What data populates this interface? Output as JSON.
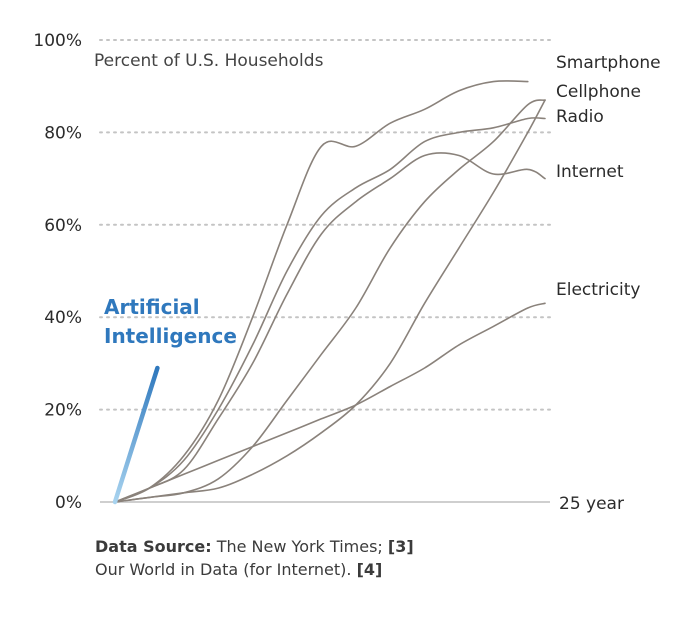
{
  "chart_data": {
    "type": "line",
    "title": "Percent of U.S. Households",
    "x_end_label": "25 year",
    "xlim": [
      0,
      25
    ],
    "ylim": [
      0,
      100
    ],
    "y_ticks": [
      "0%",
      "20%",
      "40%",
      "60%",
      "80%",
      "100%"
    ],
    "y_tick_values": [
      0,
      20,
      40,
      60,
      80,
      100
    ],
    "grid": true,
    "series": [
      {
        "name": "Smartphone",
        "x": [
          0,
          2,
          4,
          6,
          8,
          10,
          12,
          14,
          16,
          18,
          20,
          22,
          24
        ],
        "values": [
          0,
          3,
          10,
          22,
          40,
          60,
          77,
          77,
          82,
          85,
          89,
          91,
          91
        ]
      },
      {
        "name": "Cellphone",
        "x": [
          0,
          2,
          4,
          6,
          8,
          10,
          12,
          14,
          16,
          18,
          20,
          22,
          24,
          25
        ],
        "values": [
          0,
          1,
          2,
          5,
          12,
          22,
          32,
          42,
          55,
          65,
          72,
          78,
          86,
          87
        ]
      },
      {
        "name": "Radio",
        "x": [
          0,
          2,
          4,
          6,
          8,
          10,
          12,
          14,
          16,
          18,
          20,
          22,
          24,
          25
        ],
        "values": [
          0,
          3,
          9,
          20,
          34,
          50,
          62,
          68,
          72,
          78,
          80,
          81,
          83,
          83
        ]
      },
      {
        "name": "Internet",
        "x": [
          0,
          2,
          4,
          6,
          8,
          10,
          12,
          14,
          16,
          18,
          20,
          22,
          24,
          25
        ],
        "values": [
          0,
          3,
          7,
          18,
          30,
          45,
          58,
          65,
          70,
          75,
          75,
          71,
          72,
          70
        ]
      },
      {
        "name": "Electricity",
        "x": [
          0,
          2,
          4,
          6,
          8,
          10,
          12,
          14,
          16,
          18,
          20,
          22,
          24,
          25
        ],
        "values": [
          0,
          3,
          6,
          9,
          12,
          15,
          18,
          21,
          25,
          29,
          34,
          38,
          42,
          43
        ]
      },
      {
        "name": "",
        "x": [
          0,
          2,
          4,
          6,
          8,
          10,
          12,
          14,
          16,
          18,
          20,
          22,
          24,
          25
        ],
        "values": [
          0,
          1,
          2,
          3,
          6,
          10,
          15,
          21,
          30,
          43,
          55,
          67,
          80,
          87
        ]
      }
    ],
    "highlight_series": {
      "name": "Artificial Intelligence",
      "x": [
        0,
        2
      ],
      "values": [
        0,
        29
      ],
      "color_start": "#a8d3ef",
      "color_end": "#2f78bd"
    },
    "line_color": "#8a827b",
    "accent_color": "#2f78bd"
  },
  "labels": {
    "ai_line1": "Artificial",
    "ai_line2": "Intelligence"
  },
  "source": {
    "prefix": "Data Source:",
    "text1": " The New York Times; ",
    "ref1": "[3]",
    "text2": "Our World in Data (for Internet). ",
    "ref2": "[4]"
  }
}
